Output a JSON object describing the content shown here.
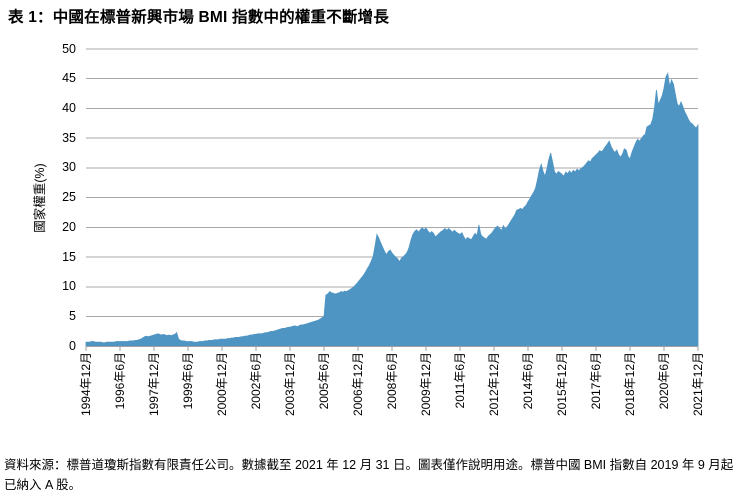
{
  "title": "表 1：中國在標普新興市場 BMI 指數中的權重不斷增長",
  "source_note": "資料來源：標普道瓊斯指數有限責任公司。數據截至 2021 年 12 月 31 日。圖表僅作說明用途。標普中國 BMI 指數自 2019 年 9 月起已納入 A 股。",
  "colors": {
    "area": "#4F95C3",
    "grid": "#A8A8A8",
    "axis": "#A0A0A0",
    "text": "#000000",
    "background": "#FFFFFF"
  },
  "chart_data": {
    "type": "area",
    "title": "表 1：中國在標普新興市場 BMI 指數中的權重不斷增長",
    "xlabel": "",
    "ylabel": "國家權重(%)",
    "ylim": [
      0,
      50
    ],
    "ytick_step": 5,
    "grid": true,
    "legend": false,
    "y_tick_labels": [
      "0",
      "5",
      "10",
      "15",
      "20",
      "25",
      "30",
      "35",
      "40",
      "45",
      "50"
    ],
    "x_tick_labels": [
      "1994年12月",
      "1996年6月",
      "1997年12月",
      "1999年6月",
      "2000年12月",
      "2002年6月",
      "2003年12月",
      "2005年6月",
      "2006年12月",
      "2008年6月",
      "2009年12月",
      "2011年6月",
      "2012年12月",
      "2014年6月",
      "2015年12月",
      "2017年6月",
      "2018年12月",
      "2020年6月",
      "2021年12月"
    ],
    "x_start": "1994年12月",
    "x_end": "2021年12月",
    "frequency": "monthly",
    "values": [
      0.7,
      0.7,
      0.7,
      0.8,
      0.8,
      0.7,
      0.7,
      0.7,
      0.7,
      0.6,
      0.6,
      0.7,
      0.7,
      0.7,
      0.7,
      0.7,
      0.8,
      0.8,
      0.8,
      0.8,
      0.8,
      0.8,
      0.8,
      0.9,
      0.9,
      0.9,
      1.0,
      1.0,
      1.1,
      1.2,
      1.4,
      1.6,
      1.7,
      1.6,
      1.7,
      1.8,
      1.9,
      2.0,
      2.1,
      2.0,
      1.9,
      2.0,
      1.9,
      1.8,
      1.9,
      1.8,
      1.9,
      2.0,
      2.3,
      1.2,
      1.0,
      0.9,
      0.9,
      0.8,
      0.8,
      0.8,
      0.8,
      0.7,
      0.7,
      0.7,
      0.8,
      0.8,
      0.8,
      0.9,
      0.9,
      1.0,
      1.0,
      1.0,
      1.1,
      1.1,
      1.1,
      1.2,
      1.2,
      1.2,
      1.2,
      1.3,
      1.3,
      1.4,
      1.4,
      1.5,
      1.5,
      1.5,
      1.6,
      1.6,
      1.7,
      1.7,
      1.8,
      1.9,
      1.9,
      2.0,
      2.0,
      2.1,
      2.1,
      2.1,
      2.2,
      2.3,
      2.3,
      2.4,
      2.5,
      2.5,
      2.6,
      2.7,
      2.8,
      2.9,
      3.0,
      3.0,
      3.1,
      3.2,
      3.2,
      3.3,
      3.4,
      3.4,
      3.3,
      3.5,
      3.6,
      3.6,
      3.7,
      3.8,
      3.9,
      4.0,
      4.1,
      4.2,
      4.3,
      4.4,
      4.6,
      4.8,
      5.0,
      8.6,
      8.8,
      9.2,
      9.0,
      8.9,
      8.8,
      8.9,
      9.0,
      9.2,
      9.1,
      9.3,
      9.2,
      9.4,
      9.6,
      9.8,
      10.1,
      10.4,
      10.8,
      11.2,
      11.6,
      12.0,
      12.5,
      13.1,
      13.6,
      14.3,
      15.1,
      16.8,
      18.8,
      18.2,
      17.4,
      16.7,
      16.0,
      15.4,
      15.9,
      16.2,
      15.7,
      15.3,
      15.0,
      14.7,
      14.2,
      14.8,
      15.1,
      15.4,
      15.8,
      16.6,
      17.8,
      18.8,
      19.3,
      19.6,
      19.2,
      19.6,
      19.9,
      19.6,
      19.9,
      19.4,
      19.0,
      19.3,
      19.0,
      18.4,
      18.7,
      19.0,
      19.3,
      19.5,
      19.8,
      19.5,
      19.8,
      19.5,
      19.2,
      19.5,
      19.2,
      19.0,
      18.8,
      19.1,
      18.4,
      17.9,
      18.3,
      18.1,
      17.9,
      18.5,
      19.0,
      18.6,
      20.4,
      18.8,
      18.4,
      18.2,
      18.0,
      18.5,
      18.8,
      19.1,
      19.6,
      20.0,
      20.2,
      19.8,
      19.5,
      20.3,
      19.7,
      20.1,
      20.6,
      21.1,
      21.6,
      22.1,
      22.9,
      23.0,
      23.2,
      23.0,
      23.4,
      23.7,
      24.3,
      24.8,
      25.4,
      25.9,
      26.6,
      28.0,
      29.6,
      30.6,
      29.4,
      28.6,
      29.8,
      31.4,
      32.5,
      31.0,
      29.4,
      28.9,
      29.4,
      29.2,
      28.9,
      28.6,
      29.3,
      29.0,
      29.5,
      29.1,
      29.6,
      29.3,
      29.8,
      29.5,
      29.9,
      30.1,
      30.4,
      30.8,
      31.2,
      31.0,
      31.6,
      31.9,
      32.2,
      32.5,
      32.9,
      32.7,
      33.1,
      33.6,
      34.0,
      34.5,
      33.6,
      33.0,
      32.6,
      33.0,
      32.2,
      31.8,
      32.3,
      33.2,
      33.0,
      31.9,
      31.5,
      32.6,
      33.4,
      34.2,
      34.8,
      34.5,
      34.9,
      35.4,
      35.6,
      36.9,
      37.1,
      37.3,
      38.2,
      40.2,
      43.1,
      40.6,
      41.4,
      42.1,
      43.4,
      45.3,
      45.9,
      43.7,
      44.8,
      44.1,
      42.4,
      40.8,
      40.3,
      41.1,
      40.3,
      39.4,
      38.8,
      38.1,
      37.6,
      37.4,
      37.0,
      36.7,
      37.2
    ]
  }
}
